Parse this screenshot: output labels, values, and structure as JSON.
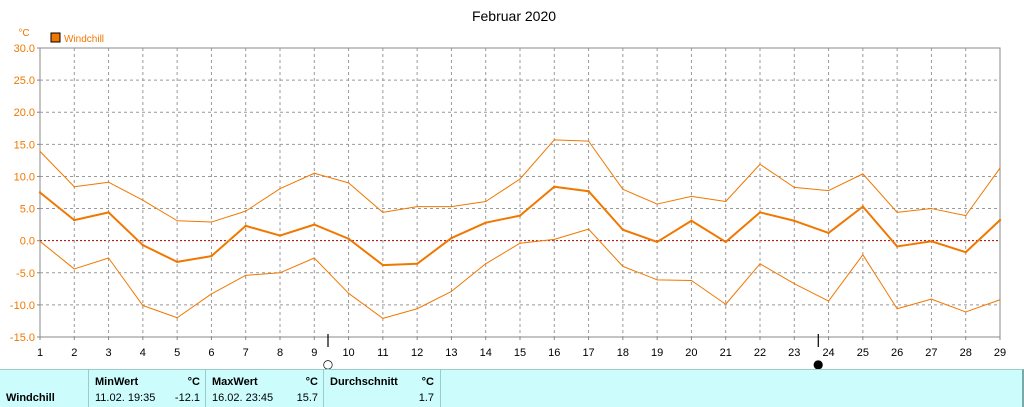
{
  "chart_data": {
    "type": "line",
    "title": "Februar 2020",
    "ylabel": "°C",
    "ylim": [
      -15,
      30
    ],
    "yticks": [
      "30.0",
      "25.0",
      "20.0",
      "15.0",
      "10.0",
      "5.0",
      "0.0",
      "-5.0",
      "-10.0",
      "-15.0"
    ],
    "ytick_values": [
      30,
      25,
      20,
      15,
      10,
      5,
      0,
      -5,
      -10,
      -15
    ],
    "x": [
      1,
      2,
      3,
      4,
      5,
      6,
      7,
      8,
      9,
      10,
      11,
      12,
      13,
      14,
      15,
      16,
      17,
      18,
      19,
      20,
      21,
      22,
      23,
      24,
      25,
      26,
      27,
      28,
      29
    ],
    "xticks": [
      "1",
      "2",
      "3",
      "4",
      "5",
      "6",
      "7",
      "8",
      "9",
      "10",
      "11",
      "12",
      "13",
      "14",
      "15",
      "16",
      "17",
      "18",
      "19",
      "20",
      "21",
      "22",
      "23",
      "24",
      "25",
      "26",
      "27",
      "28",
      "29"
    ],
    "grid": true,
    "legend": "top-left",
    "series": [
      {
        "name": "Windchill",
        "role": "mean",
        "color": "#f07800",
        "values": [
          7.5,
          3.2,
          4.4,
          -0.7,
          -3.3,
          -2.4,
          2.3,
          0.8,
          2.5,
          0.3,
          -3.8,
          -3.6,
          0.4,
          2.8,
          3.9,
          8.4,
          7.7,
          1.7,
          -0.2,
          3.1,
          -0.2,
          4.4,
          3.1,
          1.2,
          5.3,
          -0.9,
          -0.1,
          -1.8,
          3.2
        ]
      },
      {
        "role": "max",
        "color": "#f07800",
        "values": [
          13.9,
          8.4,
          9.1,
          6.3,
          3.1,
          2.9,
          4.6,
          8.1,
          10.5,
          9.0,
          4.4,
          5.3,
          5.3,
          6.1,
          9.6,
          15.7,
          15.5,
          8.0,
          5.7,
          6.9,
          6.1,
          11.9,
          8.3,
          7.8,
          10.4,
          4.4,
          5.0,
          3.9,
          11.3
        ]
      },
      {
        "role": "min",
        "color": "#f07800",
        "values": [
          -0.1,
          -4.4,
          -2.7,
          -10.1,
          -12.0,
          -8.3,
          -5.4,
          -5.0,
          -2.7,
          -8.2,
          -12.1,
          -10.6,
          -7.9,
          -3.6,
          -0.4,
          0.2,
          1.8,
          -4.0,
          -6.1,
          -6.2,
          -9.9,
          -3.6,
          -6.7,
          -9.4,
          -2.2,
          -10.6,
          -9.1,
          -11.1,
          -9.2
        ]
      }
    ],
    "zero_line_color": "#aa0000",
    "moon_phases": [
      {
        "day": 9.4,
        "symbol": "○",
        "phase": "full"
      },
      {
        "day": 23.7,
        "symbol": "●",
        "phase": "new"
      }
    ]
  },
  "stats": {
    "row_label": "Windchill",
    "min": {
      "title": "MinWert",
      "unit": "°C",
      "datetime": "11.02.  19:35",
      "value": "-12.1"
    },
    "max": {
      "title": "MaxWert",
      "unit": "°C",
      "datetime": "16.02.  23:45",
      "value": "15.7"
    },
    "avg": {
      "title": "Durchschnitt",
      "unit": "°C",
      "value": "1.7"
    }
  }
}
